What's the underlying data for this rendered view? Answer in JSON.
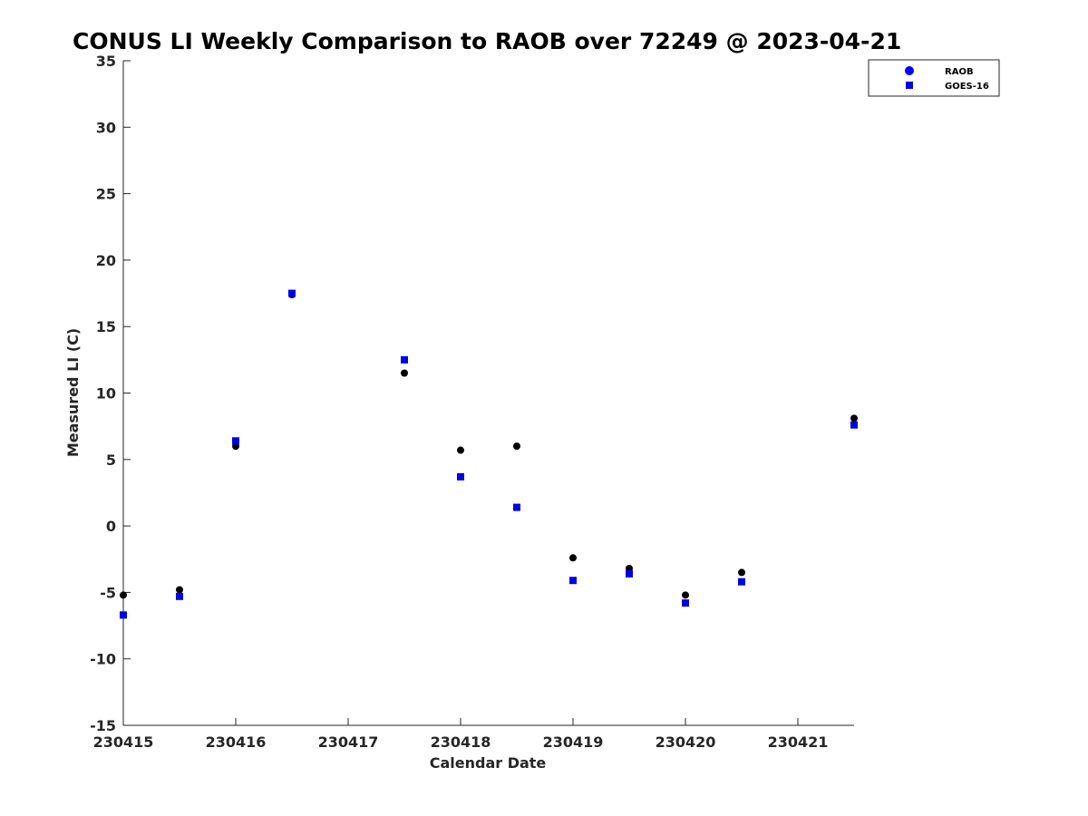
{
  "chart_data": {
    "type": "scatter",
    "title": "CONUS LI Weekly Comparison to RAOB over 72249 @ 2023-04-21",
    "xlabel": "Calendar Date",
    "ylabel": "Measured LI (C)",
    "xlim": [
      230415,
      230421.5
    ],
    "ylim": [
      -15,
      35
    ],
    "x_ticks": [
      230415,
      230416,
      230417,
      230418,
      230419,
      230420,
      230421
    ],
    "x_tick_labels": [
      "230415",
      "230416",
      "230417",
      "230418",
      "230419",
      "230420",
      "230421"
    ],
    "y_ticks": [
      -15,
      -10,
      -5,
      0,
      5,
      10,
      15,
      20,
      25,
      30,
      35
    ],
    "y_tick_labels": [
      "-15",
      "-10",
      "-5",
      "0",
      "5",
      "10",
      "15",
      "20",
      "25",
      "30",
      "35"
    ],
    "grid": false,
    "legend_position": "top-right",
    "series": [
      {
        "name": "RAOB",
        "marker": "circle",
        "color": "#000000",
        "legend_color": "#0000ff",
        "x": [
          230415,
          230415.5,
          230416,
          230416.5,
          230417.5,
          230418,
          230418.5,
          230419,
          230419.5,
          230420,
          230420.5,
          230421.5
        ],
        "y": [
          -5.2,
          -4.8,
          6.0,
          17.4,
          11.5,
          5.7,
          6.0,
          -2.4,
          -3.2,
          -5.2,
          -3.5,
          8.1
        ]
      },
      {
        "name": "GOES-16",
        "marker": "square",
        "color": "#0000e6",
        "legend_color": "#0000e6",
        "x": [
          230415,
          230415.5,
          230416,
          230416.5,
          230417.5,
          230418,
          230418.5,
          230419,
          230419.5,
          230420,
          230420.5,
          230421.5
        ],
        "y": [
          -6.7,
          -5.3,
          6.4,
          17.5,
          12.5,
          3.7,
          1.4,
          -4.1,
          -3.6,
          -5.8,
          -4.2,
          7.6
        ]
      }
    ]
  }
}
